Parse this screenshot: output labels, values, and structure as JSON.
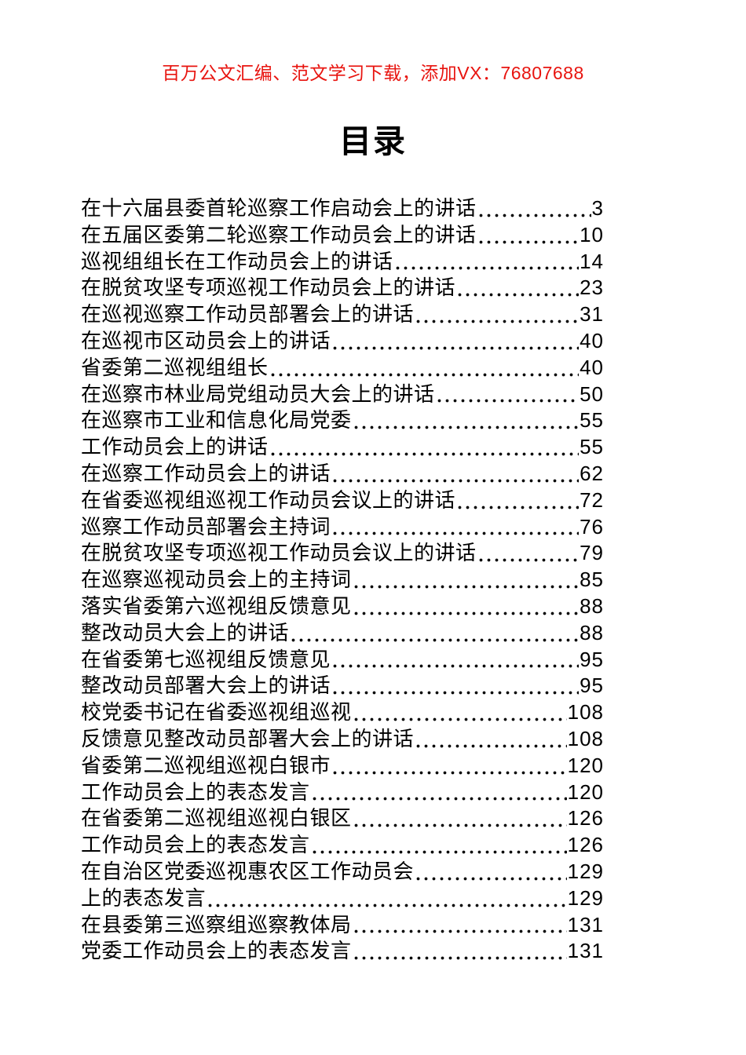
{
  "page": {
    "promo_header": "百万公文汇编、范文学习下载，添加VX：76807688",
    "title": "目录"
  },
  "colors": {
    "promo_red": "#e8140f",
    "text": "#000000"
  },
  "toc": {
    "entries": [
      {
        "title": "在十六届县委首轮巡察工作启动会上的讲话",
        "page": "3"
      },
      {
        "title": "在五届区委第二轮巡察工作动员会上的讲话",
        "page": "10"
      },
      {
        "title": "巡视组组长在工作动员会上的讲话",
        "page": "14"
      },
      {
        "title": "在脱贫攻坚专项巡视工作动员会上的讲话",
        "page": "23"
      },
      {
        "title": "在巡视巡察工作动员部署会上的讲话",
        "page": "31"
      },
      {
        "title": "在巡视市区动员会上的讲话",
        "page": "40"
      },
      {
        "title": "省委第二巡视组组长",
        "page": "40"
      },
      {
        "title": "在巡察市林业局党组动员大会上的讲话",
        "page": "50"
      },
      {
        "title": "在巡察市工业和信息化局党委",
        "page": "55"
      },
      {
        "title": "工作动员会上的讲话",
        "page": "55"
      },
      {
        "title": "在巡察工作动员会上的讲话",
        "page": "62"
      },
      {
        "title": "在省委巡视组巡视工作动员会议上的讲话",
        "page": "72"
      },
      {
        "title": "巡察工作动员部署会主持词",
        "page": "76"
      },
      {
        "title": "在脱贫攻坚专项巡视工作动员会议上的讲话",
        "page": "79"
      },
      {
        "title": "在巡察巡视动员会上的主持词",
        "page": "85"
      },
      {
        "title": "落实省委第六巡视组反馈意见",
        "page": "88"
      },
      {
        "title": "整改动员大会上的讲话",
        "page": "88"
      },
      {
        "title": "在省委第七巡视组反馈意见",
        "page": "95"
      },
      {
        "title": "整改动员部署大会上的讲话",
        "page": "95"
      },
      {
        "title": "校党委书记在省委巡视组巡视",
        "page": "108"
      },
      {
        "title": "反馈意见整改动员部署大会上的讲话",
        "page": "108"
      },
      {
        "title": "省委第二巡视组巡视白银市",
        "page": "120"
      },
      {
        "title": "工作动员会上的表态发言",
        "page": "120"
      },
      {
        "title": "在省委第二巡视组巡视白银区",
        "page": "126"
      },
      {
        "title": "工作动员会上的表态发言",
        "page": "126"
      },
      {
        "title": "在自治区党委巡视惠农区工作动员会",
        "page": "129"
      },
      {
        "title": "上的表态发言",
        "page": "129"
      },
      {
        "title": "在县委第三巡察组巡察教体局",
        "page": "131"
      },
      {
        "title": "党委工作动员会上的表态发言",
        "page": "131"
      }
    ]
  }
}
